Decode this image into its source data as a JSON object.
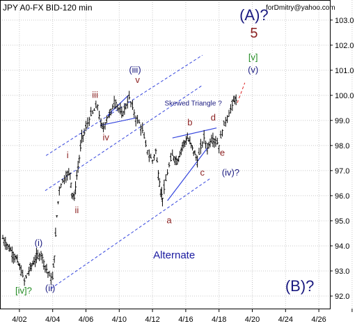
{
  "chart_data": {
    "type": "candlestick-with-elliptical-annotations",
    "title": "JPY A0-FX BID-120 min",
    "watermark": "forDmitry@yahoo.com",
    "y_axis": {
      "min": 91.5,
      "max": 103.8,
      "side": "right",
      "ticks": [
        92.0,
        93.0,
        94.0,
        95.0,
        96.0,
        97.0,
        98.0,
        99.0,
        100.0,
        101.0,
        102.0,
        103.0
      ],
      "tick_labels": [
        "92.0",
        "93.0",
        "94.0",
        "95.0",
        "96.0",
        "97.0",
        "98.0",
        "99.0",
        "100.0",
        "101.0",
        "102.0",
        "103.0"
      ]
    },
    "x_axis": {
      "ticks": [
        1,
        3,
        5,
        7,
        9,
        11,
        13,
        15,
        17,
        19,
        21,
        23
      ],
      "tick_labels": [
        "4/02",
        "4/04",
        "4/06",
        "4/10",
        "4/12",
        "4/16",
        "4/18",
        "4/20",
        "4/24",
        "4/26"
      ],
      "labeled_ticks": [
        1,
        3,
        5,
        7,
        9,
        11,
        13,
        15,
        17,
        19
      ]
    },
    "grid": "dotted",
    "price_path": [
      [
        0.0,
        94.3
      ],
      [
        0.4,
        93.9
      ],
      [
        0.8,
        93.5
      ],
      [
        1.1,
        93.0
      ],
      [
        1.3,
        92.6
      ],
      [
        1.5,
        92.9
      ],
      [
        1.8,
        93.3
      ],
      [
        2.1,
        93.6
      ],
      [
        2.3,
        93.7
      ],
      [
        2.55,
        93.2
      ],
      [
        2.8,
        92.8
      ],
      [
        3.0,
        92.7
      ],
      [
        3.1,
        93.6
      ],
      [
        3.25,
        95.2
      ],
      [
        3.4,
        96.3
      ],
      [
        3.6,
        96.6
      ],
      [
        3.8,
        96.8
      ],
      [
        4.05,
        96.9
      ],
      [
        4.15,
        96.1
      ],
      [
        4.3,
        95.9
      ],
      [
        4.45,
        96.8
      ],
      [
        4.6,
        97.5
      ],
      [
        4.75,
        98.3
      ],
      [
        4.9,
        98.5
      ],
      [
        5.1,
        98.9
      ],
      [
        5.3,
        99.2
      ],
      [
        5.5,
        99.4
      ],
      [
        5.7,
        99.6
      ],
      [
        5.9,
        98.8
      ],
      [
        6.05,
        98.7
      ],
      [
        6.25,
        99.1
      ],
      [
        6.5,
        99.3
      ],
      [
        6.7,
        99.8
      ],
      [
        6.9,
        99.6
      ],
      [
        7.15,
        99.2
      ],
      [
        7.4,
        99.6
      ],
      [
        7.6,
        99.9
      ],
      [
        7.8,
        99.5
      ],
      [
        8.0,
        99.1
      ],
      [
        8.2,
        98.9
      ],
      [
        8.4,
        98.6
      ],
      [
        8.6,
        98.0
      ],
      [
        8.8,
        97.6
      ],
      [
        9.0,
        97.4
      ],
      [
        9.2,
        97.8
      ],
      [
        9.35,
        96.9
      ],
      [
        9.5,
        96.2
      ],
      [
        9.6,
        95.9
      ],
      [
        9.8,
        96.6
      ],
      [
        10.0,
        97.2
      ],
      [
        10.2,
        97.6
      ],
      [
        10.5,
        97.4
      ],
      [
        10.8,
        98.0
      ],
      [
        11.1,
        98.3
      ],
      [
        11.4,
        97.9
      ],
      [
        11.7,
        97.4
      ],
      [
        11.9,
        97.9
      ],
      [
        12.1,
        98.3
      ],
      [
        12.3,
        97.9
      ],
      [
        12.55,
        98.3
      ],
      [
        12.8,
        98.2
      ],
      [
        13.0,
        98.0
      ],
      [
        13.2,
        98.6
      ],
      [
        13.4,
        99.0
      ],
      [
        13.6,
        99.3
      ],
      [
        13.8,
        99.6
      ],
      [
        13.95,
        99.9
      ],
      [
        14.1,
        99.7
      ]
    ],
    "annotations": [
      {
        "text": "(A)?",
        "x": 15.1,
        "y": 103.0,
        "color": "#1a1a80",
        "size": "large"
      },
      {
        "text": "5",
        "x": 15.1,
        "y": 102.3,
        "color": "#8b1f1f",
        "size": "medium"
      },
      {
        "text": "[v]",
        "x": 15.05,
        "y": 101.4,
        "color": "#228b22",
        "size": "small"
      },
      {
        "text": "(v)",
        "x": 15.05,
        "y": 100.9,
        "color": "#1a1a80",
        "size": "small"
      },
      {
        "text": "(iii)",
        "x": 7.95,
        "y": 100.9,
        "color": "#1a1a80",
        "size": "small"
      },
      {
        "text": "v",
        "x": 8.1,
        "y": 100.5,
        "color": "#8b1f1f",
        "size": "small"
      },
      {
        "text": "iii",
        "x": 5.55,
        "y": 99.9,
        "color": "#8b1f1f",
        "size": "small"
      },
      {
        "text": "iv",
        "x": 6.2,
        "y": 98.2,
        "color": "#8b1f1f",
        "size": "small"
      },
      {
        "text": "i",
        "x": 3.9,
        "y": 97.5,
        "color": "#8b1f1f",
        "size": "small"
      },
      {
        "text": "ii",
        "x": 4.45,
        "y": 95.3,
        "color": "#8b1f1f",
        "size": "small"
      },
      {
        "text": "(i)",
        "x": 2.15,
        "y": 94.0,
        "color": "#1a1a80",
        "size": "small"
      },
      {
        "text": "(ii)",
        "x": 2.85,
        "y": 92.2,
        "color": "#1a1a80",
        "size": "small"
      },
      {
        "text": "[iv]?",
        "x": 1.25,
        "y": 92.1,
        "color": "#228b22",
        "size": "small"
      },
      {
        "text": "Skewed Triangle ?",
        "x": 11.45,
        "y": 99.6,
        "color": "#1a1a80",
        "size": "tiny"
      },
      {
        "text": "b",
        "x": 11.25,
        "y": 98.8,
        "color": "#8b1f1f",
        "size": "small"
      },
      {
        "text": "d",
        "x": 12.65,
        "y": 99.0,
        "color": "#8b1f1f",
        "size": "small"
      },
      {
        "text": "e",
        "x": 13.2,
        "y": 97.6,
        "color": "#8b1f1f",
        "size": "small"
      },
      {
        "text": "c",
        "x": 12.0,
        "y": 96.8,
        "color": "#8b1f1f",
        "size": "small"
      },
      {
        "text": "(iv)?",
        "x": 13.7,
        "y": 96.8,
        "color": "#1a1a80",
        "size": "small"
      },
      {
        "text": "a",
        "x": 10.0,
        "y": 94.9,
        "color": "#8b1f1f",
        "size": "small"
      },
      {
        "text": "Alternate",
        "x": 10.3,
        "y": 93.5,
        "color": "#1a1aa0",
        "size": "medium-thin"
      },
      {
        "text": "(B)?",
        "x": 17.85,
        "y": 92.2,
        "color": "#1a1a80",
        "size": "large"
      }
    ],
    "lines": [
      {
        "kind": "dashed-channel",
        "x1": 2.6,
        "y1": 97.6,
        "x2": 12.0,
        "y2": 101.6,
        "color": "#3344dd"
      },
      {
        "kind": "dashed-channel",
        "x1": 2.55,
        "y1": 96.2,
        "x2": 12.0,
        "y2": 100.4,
        "color": "#3344dd"
      },
      {
        "kind": "dashed-channel",
        "x1": 2.9,
        "y1": 92.3,
        "x2": 12.5,
        "y2": 96.7,
        "color": "#3344dd"
      },
      {
        "kind": "solid",
        "x1": 6.3,
        "y1": 99.2,
        "x2": 7.55,
        "y2": 100.0,
        "color": "#3344dd"
      },
      {
        "kind": "solid",
        "x1": 5.85,
        "y1": 98.8,
        "x2": 8.0,
        "y2": 99.1,
        "color": "#3344dd"
      },
      {
        "kind": "solid",
        "x1": 10.2,
        "y1": 98.3,
        "x2": 12.85,
        "y2": 98.7,
        "color": "#3344dd"
      },
      {
        "kind": "solid",
        "x1": 9.9,
        "y1": 95.8,
        "x2": 12.3,
        "y2": 97.9,
        "color": "#3344dd"
      },
      {
        "kind": "dashed-projection",
        "x1": 14.1,
        "y1": 99.7,
        "x2": 14.55,
        "y2": 100.5,
        "color": "#dd2222"
      }
    ]
  }
}
